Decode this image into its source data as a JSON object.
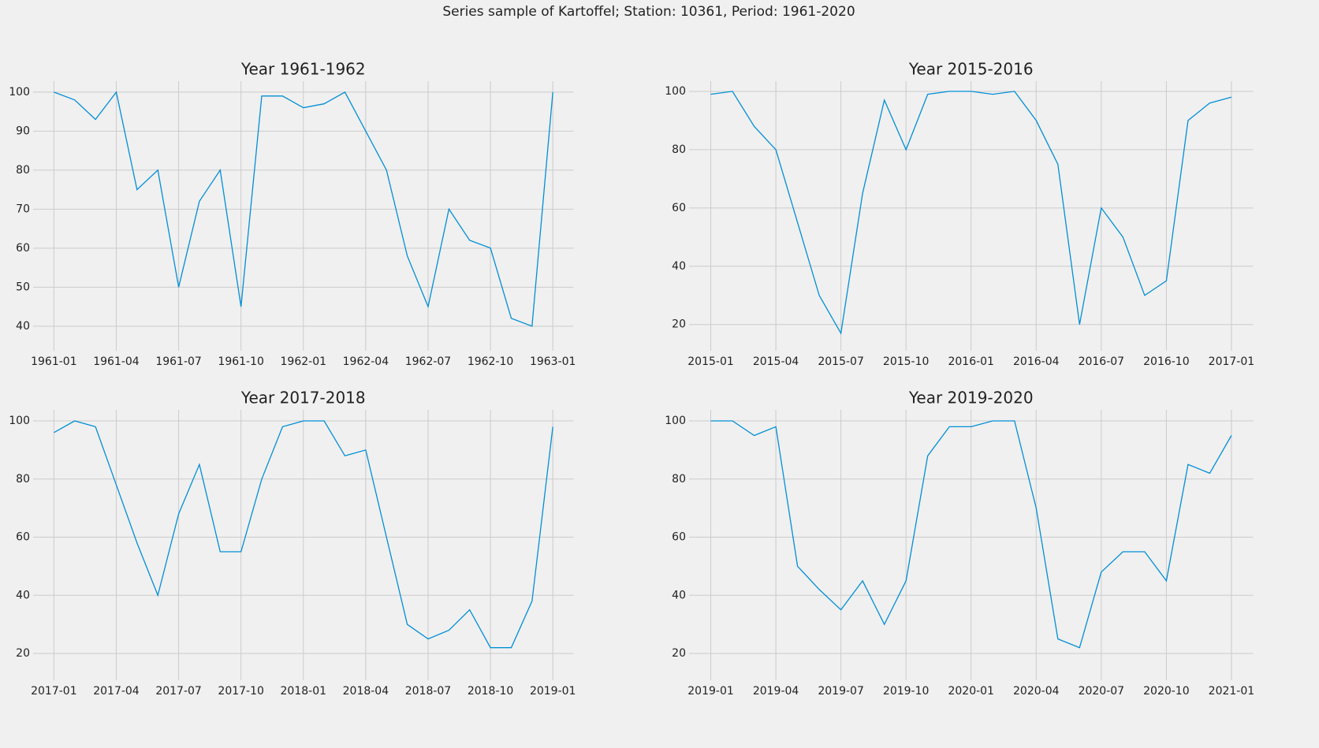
{
  "title": "Series sample of Kartoffel; Station: 10361, Period: 1961-2020",
  "chart_data": [
    {
      "type": "line",
      "title": "Year 1961-1962",
      "grid": true,
      "x": [
        "1961-01",
        "1961-02",
        "1961-03",
        "1961-04",
        "1961-05",
        "1961-06",
        "1961-07",
        "1961-08",
        "1961-09",
        "1961-10",
        "1961-11",
        "1961-12",
        "1962-01",
        "1962-02",
        "1962-03",
        "1962-04",
        "1962-05",
        "1962-06",
        "1962-07",
        "1962-08",
        "1962-09",
        "1962-10",
        "1962-11",
        "1962-12",
        "1963-01"
      ],
      "series": [
        {
          "color": "#008fd5",
          "values": [
            100,
            98,
            93,
            100,
            75,
            80,
            50,
            72,
            80,
            45,
            99,
            99,
            96,
            97,
            100,
            90,
            80,
            58,
            45,
            70,
            62,
            60,
            42,
            40,
            100
          ]
        }
      ],
      "xlim": [
        "1960-12",
        "1963-02"
      ],
      "xticks": [
        "1961-01",
        "1961-04",
        "1961-07",
        "1961-10",
        "1962-01",
        "1962-04",
        "1962-07",
        "1962-10",
        "1963-01"
      ],
      "ylim": [
        33.7,
        102.8
      ],
      "yticks": [
        40,
        50,
        60,
        70,
        80,
        90,
        100
      ]
    },
    {
      "type": "line",
      "title": "Year 2015-2016",
      "grid": true,
      "x": [
        "2015-01",
        "2015-02",
        "2015-03",
        "2015-04",
        "2015-05",
        "2015-06",
        "2015-07",
        "2015-08",
        "2015-09",
        "2015-10",
        "2015-11",
        "2015-12",
        "2016-01",
        "2016-02",
        "2016-03",
        "2016-04",
        "2016-05",
        "2016-06",
        "2016-07",
        "2016-08",
        "2016-09",
        "2016-10",
        "2016-11",
        "2016-12",
        "2017-01"
      ],
      "series": [
        {
          "color": "#008fd5",
          "values": [
            99,
            100,
            88,
            80,
            55,
            30,
            17,
            65,
            97,
            80,
            99,
            100,
            100,
            99,
            100,
            90,
            75,
            20,
            60,
            50,
            30,
            35,
            90,
            96,
            98
          ]
        }
      ],
      "xlim": [
        "2014-12",
        "2017-02"
      ],
      "xticks": [
        "2015-01",
        "2015-04",
        "2015-07",
        "2015-10",
        "2016-01",
        "2016-04",
        "2016-07",
        "2016-10",
        "2017-01"
      ],
      "ylim": [
        11,
        103.5
      ],
      "yticks": [
        20,
        40,
        60,
        80,
        100
      ]
    },
    {
      "type": "line",
      "title": "Year 2017-2018",
      "grid": true,
      "x": [
        "2017-01",
        "2017-02",
        "2017-03",
        "2017-04",
        "2017-05",
        "2017-06",
        "2017-07",
        "2017-08",
        "2017-09",
        "2017-10",
        "2017-11",
        "2017-12",
        "2018-01",
        "2018-02",
        "2018-03",
        "2018-04",
        "2018-05",
        "2018-06",
        "2018-07",
        "2018-08",
        "2018-09",
        "2018-10",
        "2018-11",
        "2018-12",
        "2019-01"
      ],
      "series": [
        {
          "color": "#008fd5",
          "values": [
            96,
            100,
            98,
            78,
            58,
            40,
            68,
            85,
            55,
            55,
            80,
            98,
            100,
            100,
            88,
            90,
            60,
            30,
            25,
            28,
            35,
            22,
            22,
            38,
            98
          ]
        }
      ],
      "xlim": [
        "2016-12",
        "2019-02"
      ],
      "xticks": [
        "2017-01",
        "2017-04",
        "2017-07",
        "2017-10",
        "2018-01",
        "2018-04",
        "2018-07",
        "2018-10",
        "2019-01"
      ],
      "ylim": [
        10.8,
        103.8
      ],
      "yticks": [
        20,
        40,
        60,
        80,
        100
      ]
    },
    {
      "type": "line",
      "title": "Year 2019-2020",
      "grid": true,
      "x": [
        "2019-01",
        "2019-02",
        "2019-03",
        "2019-04",
        "2019-05",
        "2019-06",
        "2019-07",
        "2019-08",
        "2019-09",
        "2019-10",
        "2019-11",
        "2019-12",
        "2020-01",
        "2020-02",
        "2020-03",
        "2020-04",
        "2020-05",
        "2020-06",
        "2020-07",
        "2020-08",
        "2020-09",
        "2020-10",
        "2020-11",
        "2020-12",
        "2021-01"
      ],
      "series": [
        {
          "color": "#008fd5",
          "values": [
            100,
            100,
            95,
            98,
            50,
            42,
            35,
            45,
            30,
            45,
            88,
            98,
            98,
            100,
            100,
            70,
            25,
            22,
            48,
            55,
            55,
            45,
            85,
            82,
            95
          ]
        }
      ],
      "xlim": [
        "2018-12",
        "2021-02"
      ],
      "xticks": [
        "2019-01",
        "2019-04",
        "2019-07",
        "2019-10",
        "2020-01",
        "2020-04",
        "2020-07",
        "2020-10",
        "2021-01"
      ],
      "ylim": [
        10.8,
        103.8
      ],
      "yticks": [
        20,
        40,
        60,
        80,
        100
      ]
    }
  ]
}
